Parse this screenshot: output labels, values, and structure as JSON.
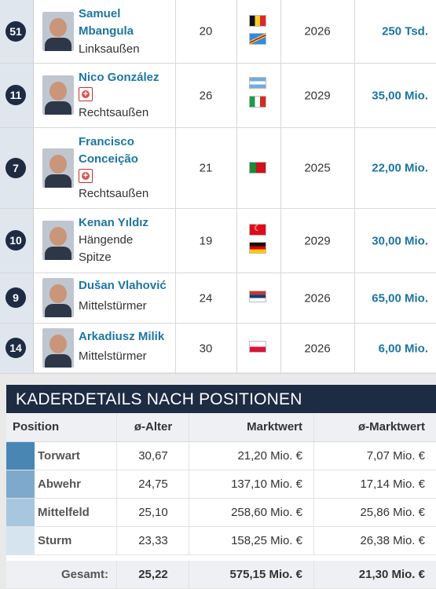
{
  "players": [
    {
      "number": "51",
      "name_lines": [
        "Samuel",
        "Mbangula"
      ],
      "injury": false,
      "position_lines": [
        "Linksaußen"
      ],
      "age": "20",
      "flags": [
        "belgium-flag",
        "dr-congo-flag"
      ],
      "contract": "2026",
      "value": "250 Tsd."
    },
    {
      "number": "11",
      "name_lines": [
        "Nico González"
      ],
      "injury": true,
      "position_lines": [
        "Rechtsaußen"
      ],
      "age": "26",
      "flags": [
        "argentina-flag",
        "italy-flag"
      ],
      "contract": "2029",
      "value": "35,00 Mio."
    },
    {
      "number": "7",
      "name_lines": [
        "Francisco",
        "Conceição"
      ],
      "injury": true,
      "position_lines": [
        "Rechtsaußen"
      ],
      "age": "21",
      "flags": [
        "portugal-flag"
      ],
      "contract": "2025",
      "value": "22,00 Mio."
    },
    {
      "number": "10",
      "name_lines": [
        "Kenan Yıldız"
      ],
      "injury": false,
      "position_lines": [
        "Hängende",
        "Spitze"
      ],
      "age": "19",
      "flags": [
        "turkey-flag",
        "germany-flag"
      ],
      "contract": "2029",
      "value": "30,00 Mio."
    },
    {
      "number": "9",
      "name_lines": [
        "Dušan Vlahović"
      ],
      "injury": false,
      "position_lines": [
        "Mittelstürmer"
      ],
      "age": "24",
      "flags": [
        "serbia-flag"
      ],
      "contract": "2026",
      "value": "65,00 Mio."
    },
    {
      "number": "14",
      "name_lines": [
        "Arkadiusz Milik"
      ],
      "injury": false,
      "position_lines": [
        "Mittelstürmer"
      ],
      "age": "30",
      "flags": [
        "poland-flag"
      ],
      "contract": "2026",
      "value": "6,00 Mio."
    }
  ],
  "kader": {
    "title": "KADERDETAILS NACH POSITIONEN",
    "headers": {
      "position": "Position",
      "avg_age": "ø-Alter",
      "market_value": "Marktwert",
      "avg_market_value": "ø-Marktwert"
    },
    "rows": [
      {
        "label": "Torwart",
        "avg_age": "30,67",
        "market_value": "21,20 Mio. €",
        "avg_market_value": "7,07 Mio. €",
        "color": "#4a86b4"
      },
      {
        "label": "Abwehr",
        "avg_age": "24,75",
        "market_value": "137,10 Mio. €",
        "avg_market_value": "17,14 Mio. €",
        "color": "#7fa9cc"
      },
      {
        "label": "Mittelfeld",
        "avg_age": "25,10",
        "market_value": "258,60 Mio. €",
        "avg_market_value": "25,86 Mio. €",
        "color": "#a9c6df"
      },
      {
        "label": "Sturm",
        "avg_age": "23,33",
        "market_value": "158,25 Mio. €",
        "avg_market_value": "26,38 Mio. €",
        "color": "#d6e4f0"
      }
    ],
    "total": {
      "label": "Gesamt:",
      "avg_age": "25,22",
      "market_value": "575,15 Mio. €",
      "avg_market_value": "21,30 Mio. €"
    }
  }
}
